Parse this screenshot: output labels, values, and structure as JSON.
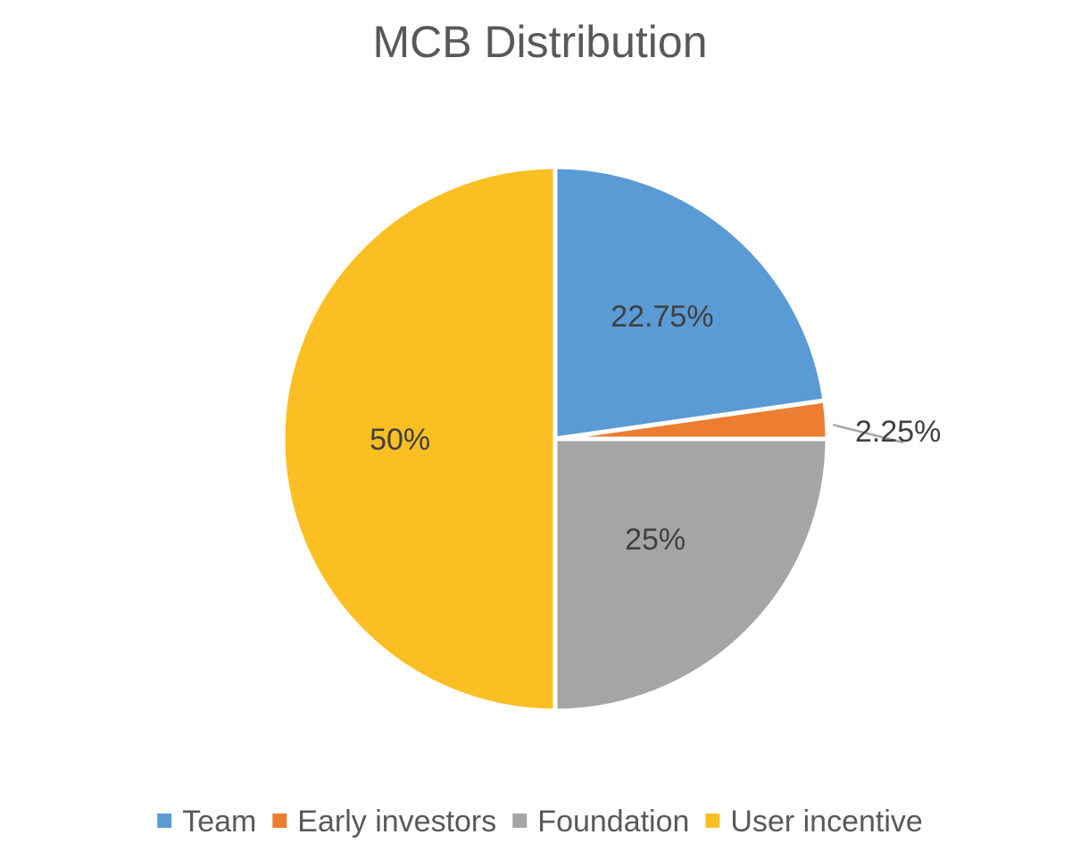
{
  "chart_data": {
    "type": "pie",
    "title": "MCB Distribution",
    "categories": [
      "Team",
      "Early investors",
      "Foundation",
      "User incentive"
    ],
    "values": [
      22.75,
      2.25,
      25,
      50
    ],
    "data_labels": [
      "22.75%",
      "2.25%",
      "25%",
      "50%"
    ],
    "colors": [
      "#5b9bd5",
      "#ed7d31",
      "#a5a5a5",
      "#fbbf24"
    ],
    "start_angle": "12 o'clock, clockwise",
    "legend_position": "bottom"
  }
}
